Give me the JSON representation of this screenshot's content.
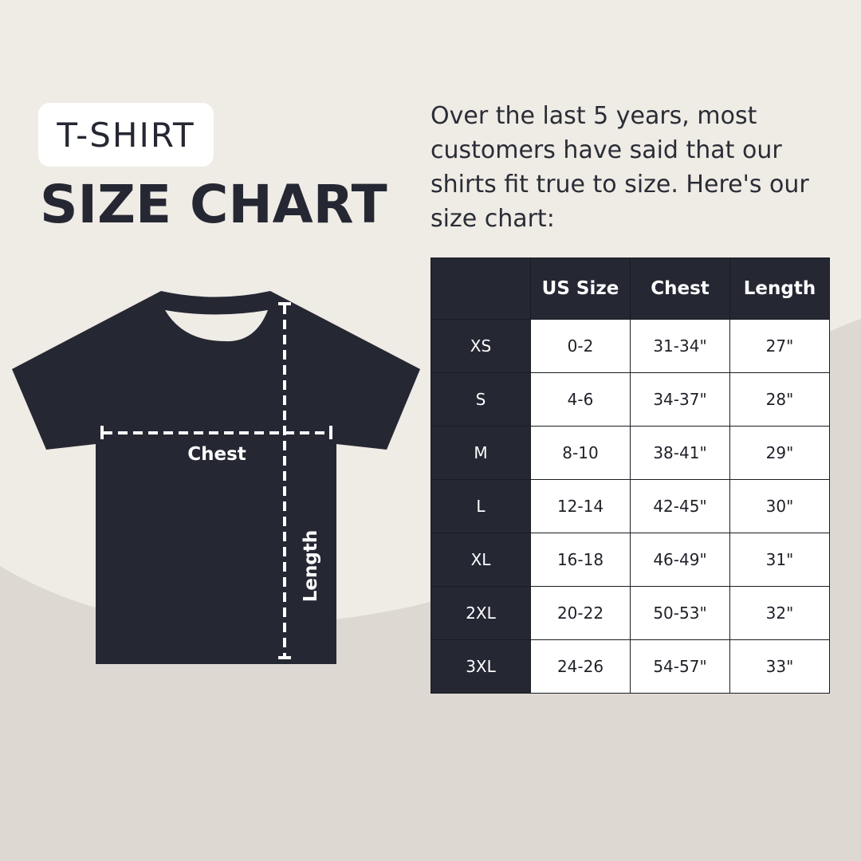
{
  "badge": "T-SHIRT",
  "title": "SIZE CHART",
  "intro": "Over the last 5 years, most customers have said that our shirts fit true to size. Here's our size chart:",
  "diagram": {
    "chest_label": "Chest",
    "length_label": "Length"
  },
  "colors": {
    "background": "#efebe5",
    "wave": "#ddd8d2",
    "shirt": "#252833",
    "header": "#252833"
  },
  "table": {
    "headers": [
      "",
      "US Size",
      "Chest",
      "Length"
    ],
    "rows": [
      [
        "XS",
        "0-2",
        "31-34\"",
        "27\""
      ],
      [
        "S",
        "4-6",
        "34-37\"",
        "28\""
      ],
      [
        "M",
        "8-10",
        "38-41\"",
        "29\""
      ],
      [
        "L",
        "12-14",
        "42-45\"",
        "30\""
      ],
      [
        "XL",
        "16-18",
        "46-49\"",
        "31\""
      ],
      [
        "2XL",
        "20-22",
        "50-53\"",
        "32\""
      ],
      [
        "3XL",
        "24-26",
        "54-57\"",
        "33\""
      ]
    ]
  }
}
